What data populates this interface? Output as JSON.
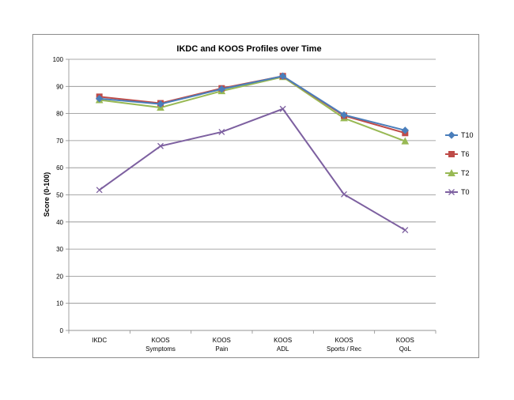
{
  "chart_data": {
    "type": "line",
    "title": "IKDC and KOOS Profiles over Time",
    "xlabel": "",
    "ylabel": "Score (0-100)",
    "ylim": [
      0,
      100
    ],
    "yticks": [
      0,
      10,
      20,
      30,
      40,
      50,
      60,
      70,
      80,
      90,
      100
    ],
    "grid": true,
    "legend_position": "right",
    "categories": [
      [
        "IKDC"
      ],
      [
        "KOOS",
        "Symptoms"
      ],
      [
        "KOOS",
        "Pain"
      ],
      [
        "KOOS",
        "ADL"
      ],
      [
        "KOOS",
        "Sports / Rec"
      ],
      [
        "KOOS",
        "QoL"
      ]
    ],
    "series": [
      {
        "name": "T10",
        "color": "#4a7ebb",
        "marker": "diamond",
        "values": [
          85.5,
          83.5,
          89,
          93.8,
          79.5,
          73.8
        ]
      },
      {
        "name": "T6",
        "color": "#be4b48",
        "marker": "square",
        "values": [
          86.2,
          83.8,
          89.3,
          93.8,
          79.2,
          72.8
        ]
      },
      {
        "name": "T2",
        "color": "#98b954",
        "marker": "triangle",
        "values": [
          85,
          82.2,
          88.3,
          93.5,
          78.3,
          69.8
        ]
      },
      {
        "name": "T0",
        "color": "#7d60a0",
        "marker": "x",
        "values": [
          51.8,
          68,
          73.2,
          81.7,
          50.2,
          37
        ]
      }
    ]
  }
}
